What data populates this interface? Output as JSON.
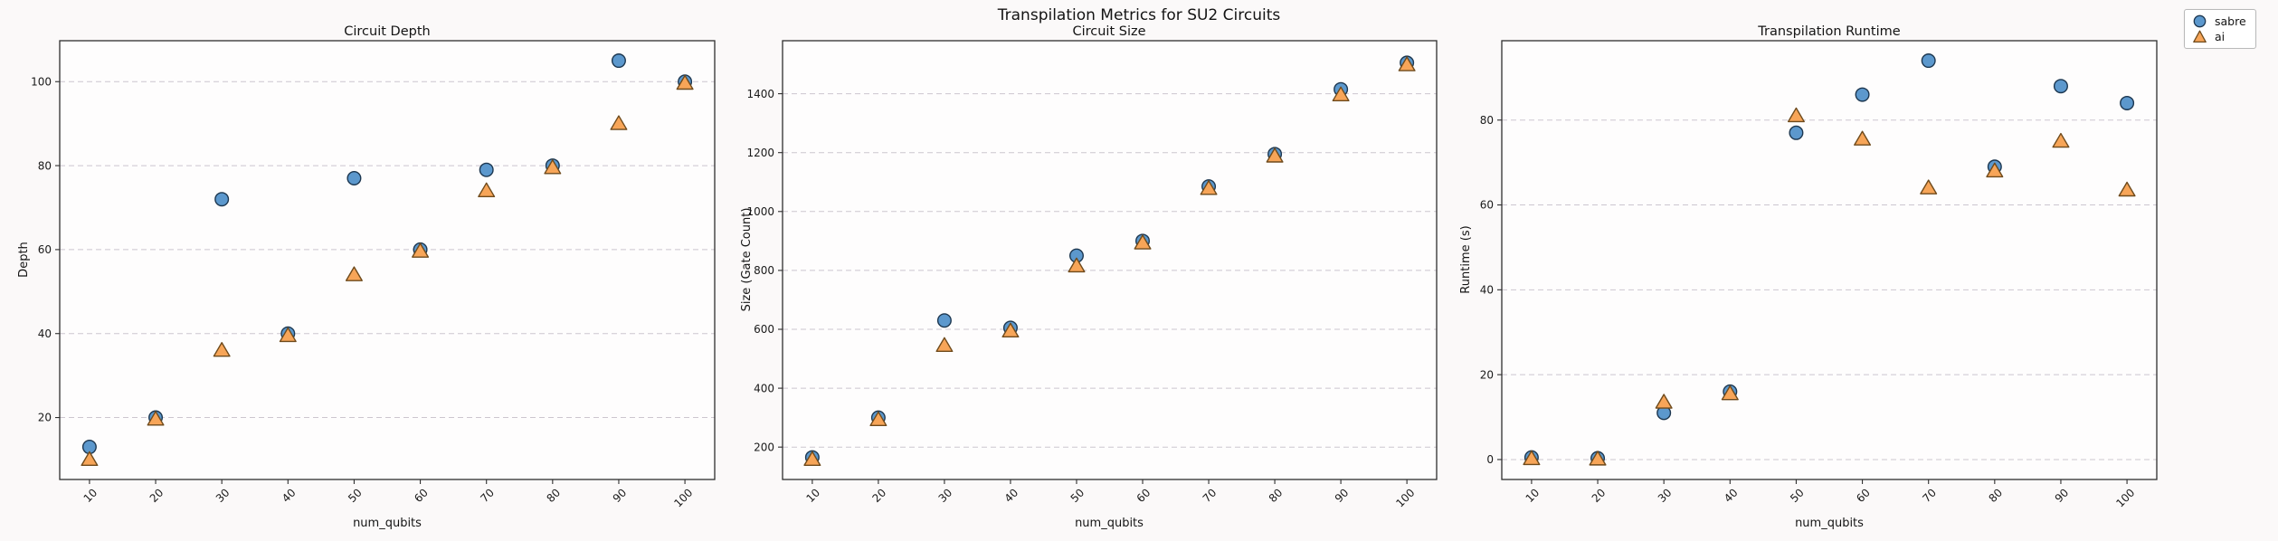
{
  "figure": {
    "suptitle": "Transpilation Metrics for SU2 Circuits"
  },
  "legend": {
    "position": "top-right",
    "items": [
      {
        "label": "sabre",
        "marker": "circle"
      },
      {
        "label": "ai",
        "marker": "triangle"
      }
    ]
  },
  "colors": {
    "sabre_fill": "#5c98cd",
    "sabre_edge": "#1d3750",
    "ai_fill": "#f7a558",
    "ai_edge": "#6e4a1c",
    "grid": "#ccc6cf",
    "axis": "#2e2e2e",
    "plot_bg": "#fefdfd",
    "figure_bg": "#fbf9f9",
    "text": "#1a1a1a"
  },
  "chart_data": [
    {
      "type": "scatter",
      "title": "Circuit Depth",
      "xlabel": "num_qubits",
      "ylabel": "Depth",
      "x": [
        10,
        20,
        30,
        40,
        50,
        60,
        70,
        80,
        90,
        100
      ],
      "xticks": [
        10,
        20,
        30,
        40,
        50,
        60,
        70,
        80,
        90,
        100
      ],
      "yticks": [
        20,
        40,
        60,
        80,
        100
      ],
      "xlim": [
        5.5,
        104.5
      ],
      "ylim": [
        5.25,
        109.75
      ],
      "grid": "horizontal-dashed",
      "series": [
        {
          "name": "sabre",
          "marker": "circle",
          "values": [
            13,
            20,
            72,
            40,
            77,
            60,
            79,
            80,
            105,
            100
          ]
        },
        {
          "name": "ai",
          "marker": "triangle",
          "values": [
            10,
            19.6,
            36,
            39.5,
            54,
            59.6,
            74,
            79.5,
            90,
            99.6
          ]
        }
      ]
    },
    {
      "type": "scatter",
      "title": "Circuit Size",
      "xlabel": "num_qubits",
      "ylabel": "Size (Gate Count)",
      "x": [
        10,
        20,
        30,
        40,
        50,
        60,
        70,
        80,
        90,
        100
      ],
      "xticks": [
        10,
        20,
        30,
        40,
        50,
        60,
        70,
        80,
        90,
        100
      ],
      "yticks": [
        200,
        400,
        600,
        800,
        1000,
        1200,
        1400
      ],
      "xlim": [
        5.5,
        104.5
      ],
      "ylim": [
        90,
        1580
      ],
      "grid": "horizontal-dashed",
      "series": [
        {
          "name": "sabre",
          "marker": "circle",
          "values": [
            165,
            300,
            630,
            605,
            850,
            900,
            1085,
            1195,
            1415,
            1505
          ]
        },
        {
          "name": "ai",
          "marker": "triangle",
          "values": [
            158,
            293,
            545,
            594,
            815,
            893,
            1078,
            1188,
            1396,
            1498
          ]
        }
      ]
    },
    {
      "type": "scatter",
      "title": "Transpilation Runtime",
      "xlabel": "num_qubits",
      "ylabel": "Runtime (s)",
      "x": [
        10,
        20,
        30,
        40,
        50,
        60,
        70,
        80,
        90,
        100
      ],
      "xticks": [
        10,
        20,
        30,
        40,
        50,
        60,
        70,
        80,
        90,
        100
      ],
      "yticks": [
        0,
        20,
        40,
        60,
        80
      ],
      "xlim": [
        5.5,
        104.5
      ],
      "ylim": [
        -4.7,
        98.7
      ],
      "grid": "horizontal-dashed",
      "series": [
        {
          "name": "sabre",
          "marker": "circle",
          "values": [
            0.5,
            0.3,
            11,
            16,
            77,
            86,
            94,
            69,
            88,
            84
          ]
        },
        {
          "name": "ai",
          "marker": "triangle",
          "values": [
            0.2,
            0.1,
            13.5,
            15.5,
            81,
            75.5,
            64,
            68,
            75,
            63.5
          ]
        }
      ]
    }
  ]
}
